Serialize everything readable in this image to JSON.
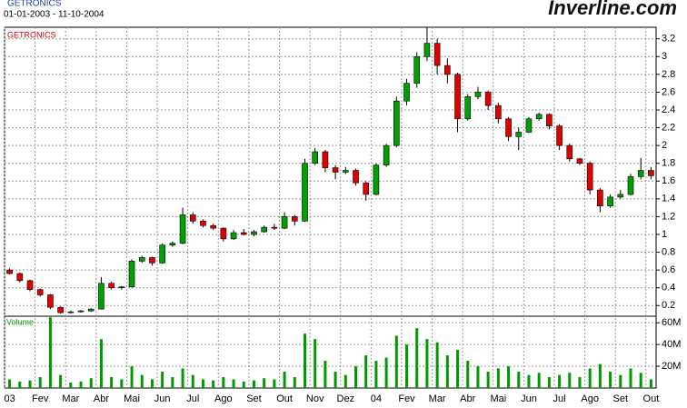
{
  "chart_data": {
    "type": "candlestick",
    "title": "GETRONICS",
    "subtitle": "01-01-2003 - 11-10-2004",
    "brand": "Inverline.com",
    "panel_label": "GETRONICS",
    "categories": [
      "03",
      null,
      null,
      "Fev",
      null,
      null,
      "Mar",
      null,
      null,
      "Abr",
      null,
      null,
      "Mai",
      null,
      null,
      "Jun",
      null,
      null,
      "Jul",
      null,
      null,
      "Ago",
      null,
      null,
      "Set",
      null,
      null,
      "Out",
      null,
      null,
      "Nov",
      null,
      null,
      "Dez",
      null,
      null,
      "04",
      null,
      null,
      "Fev",
      null,
      null,
      "Mar",
      null,
      null,
      "Abr",
      null,
      null,
      "Mai",
      null,
      null,
      "Jun",
      null,
      null,
      "Jul",
      null,
      null,
      "Ago",
      null,
      null,
      "Set",
      null,
      null,
      "Out"
    ],
    "open": [
      0.6,
      0.56,
      0.48,
      0.38,
      0.32,
      0.18,
      0.12,
      0.13,
      0.14,
      0.16,
      0.45,
      0.4,
      0.41,
      0.7,
      0.74,
      0.68,
      0.88,
      0.9,
      1.22,
      1.15,
      1.1,
      1.07,
      0.95,
      1.02,
      1.0,
      1.03,
      1.08,
      1.07,
      1.2,
      1.15,
      1.8,
      1.93,
      1.75,
      1.7,
      1.72,
      1.58,
      1.45,
      1.78,
      2.0,
      2.5,
      2.7,
      3.0,
      3.15,
      2.9,
      2.8,
      2.3,
      2.55,
      2.6,
      2.45,
      2.3,
      2.1,
      2.15,
      2.3,
      2.35,
      2.22,
      2.0,
      1.85,
      1.8,
      1.5,
      1.32,
      1.42,
      1.45,
      1.65,
      1.72
    ],
    "high": [
      0.62,
      0.57,
      0.49,
      0.39,
      0.33,
      0.19,
      0.14,
      0.15,
      0.17,
      0.52,
      0.47,
      0.42,
      0.72,
      0.76,
      0.75,
      0.9,
      0.92,
      1.3,
      1.25,
      1.17,
      1.12,
      1.08,
      1.05,
      1.06,
      1.05,
      1.1,
      1.12,
      1.25,
      1.22,
      1.85,
      1.97,
      1.95,
      1.78,
      1.76,
      1.74,
      1.6,
      1.8,
      2.02,
      2.55,
      2.75,
      3.05,
      3.33,
      3.2,
      2.98,
      2.82,
      2.58,
      2.66,
      2.62,
      2.48,
      2.32,
      2.2,
      2.32,
      2.37,
      2.36,
      2.24,
      2.02,
      1.86,
      1.82,
      1.52,
      1.45,
      1.5,
      1.68,
      1.86,
      1.76
    ],
    "low": [
      0.55,
      0.46,
      0.36,
      0.3,
      0.16,
      0.11,
      0.11,
      0.12,
      0.13,
      0.16,
      0.38,
      0.38,
      0.4,
      0.68,
      0.65,
      0.67,
      0.86,
      0.89,
      1.12,
      1.08,
      1.05,
      0.92,
      0.94,
      0.99,
      0.98,
      1.02,
      1.05,
      1.06,
      1.1,
      1.14,
      1.78,
      1.7,
      1.62,
      1.68,
      1.55,
      1.38,
      1.44,
      1.76,
      1.98,
      2.45,
      2.65,
      2.95,
      2.8,
      2.7,
      2.15,
      2.28,
      2.52,
      2.4,
      2.25,
      2.05,
      1.95,
      2.14,
      2.28,
      2.18,
      1.95,
      1.82,
      1.78,
      1.45,
      1.25,
      1.3,
      1.4,
      1.44,
      1.62,
      1.62
    ],
    "close": [
      0.56,
      0.48,
      0.38,
      0.32,
      0.18,
      0.12,
      0.13,
      0.14,
      0.16,
      0.45,
      0.4,
      0.41,
      0.7,
      0.74,
      0.68,
      0.88,
      0.9,
      1.22,
      1.15,
      1.1,
      1.07,
      0.95,
      1.02,
      1.0,
      1.03,
      1.08,
      1.07,
      1.2,
      1.15,
      1.8,
      1.93,
      1.75,
      1.7,
      1.72,
      1.58,
      1.45,
      1.78,
      2.0,
      2.5,
      2.7,
      3.0,
      3.15,
      2.9,
      2.8,
      2.3,
      2.55,
      2.6,
      2.45,
      2.3,
      2.1,
      2.15,
      2.3,
      2.35,
      2.22,
      2.0,
      1.85,
      1.8,
      1.5,
      1.32,
      1.42,
      1.45,
      1.65,
      1.72,
      1.66
    ],
    "up_color": "#00a000",
    "down_color": "#e00000",
    "ylim": [
      0.08,
      3.33
    ],
    "yticks": [
      0.2,
      0.4,
      0.6,
      0.8,
      1,
      1.2,
      1.4,
      1.6,
      1.8,
      2,
      2.2,
      2.4,
      2.6,
      2.8,
      3,
      3.2
    ],
    "grid": true,
    "volume": {
      "label": "Volume",
      "color": "#009900",
      "values": [
        8000000,
        6000000,
        7000000,
        10000000,
        65000000,
        12000000,
        5000000,
        6000000,
        9000000,
        45000000,
        10000000,
        8000000,
        20000000,
        12000000,
        8000000,
        15000000,
        10000000,
        18000000,
        12000000,
        8000000,
        7000000,
        10000000,
        8000000,
        6000000,
        7000000,
        9000000,
        8000000,
        15000000,
        10000000,
        50000000,
        45000000,
        25000000,
        15000000,
        12000000,
        20000000,
        30000000,
        25000000,
        28000000,
        48000000,
        40000000,
        55000000,
        45000000,
        42000000,
        30000000,
        35000000,
        25000000,
        20000000,
        15000000,
        18000000,
        20000000,
        15000000,
        12000000,
        14000000,
        10000000,
        12000000,
        14000000,
        10000000,
        18000000,
        22000000,
        15000000,
        12000000,
        18000000,
        14000000,
        8000000
      ],
      "ylim": [
        0,
        66000000
      ],
      "yticks": [
        {
          "value": 20000000,
          "label": "20M"
        },
        {
          "value": 40000000,
          "label": "40M"
        },
        {
          "value": 60000000,
          "label": "60M"
        }
      ]
    }
  }
}
